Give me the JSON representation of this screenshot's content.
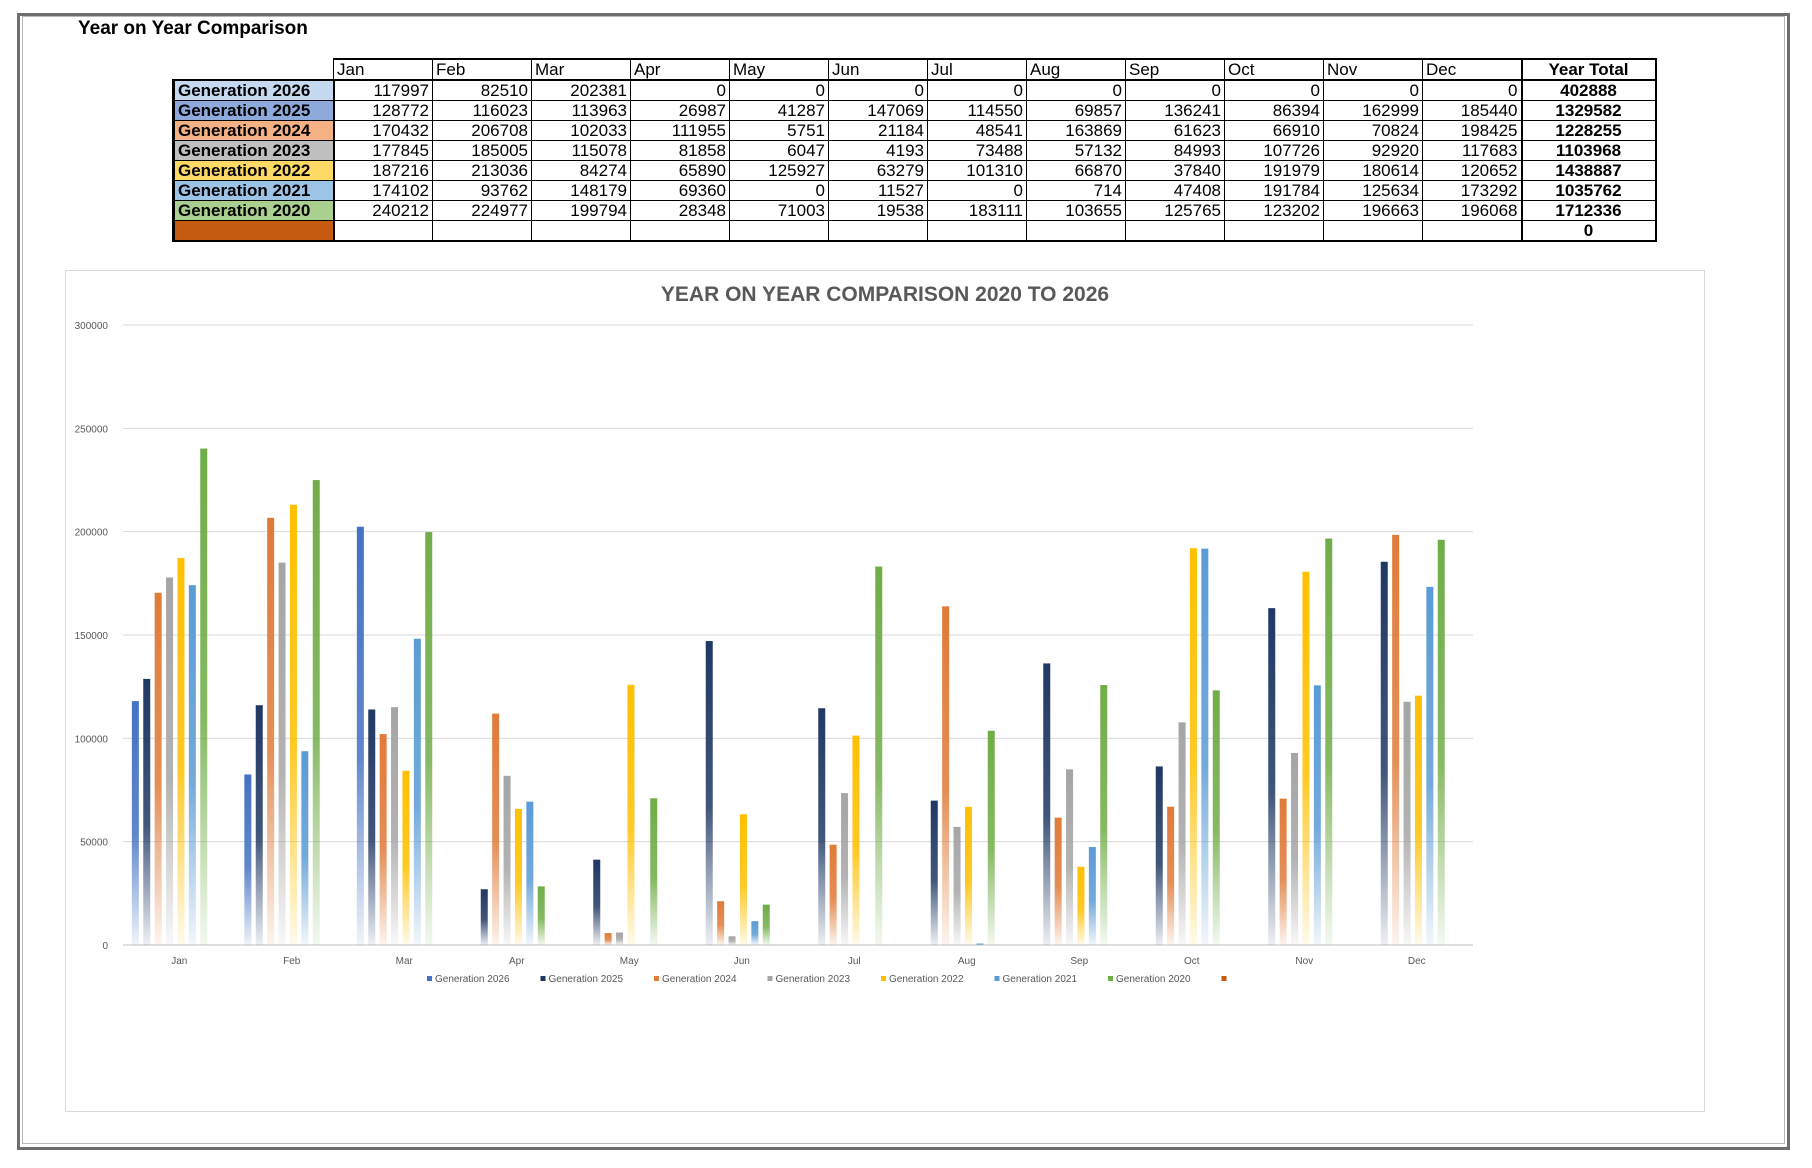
{
  "sheet": {
    "title": "Year on Year Comparison"
  },
  "table": {
    "months": [
      "Jan",
      "Feb",
      "Mar",
      "Apr",
      "May",
      "Jun",
      "Jul",
      "Aug",
      "Sep",
      "Oct",
      "Nov",
      "Dec"
    ],
    "total_header": "Year Total",
    "rows": [
      {
        "label": "Generation 2026",
        "color": "#c5d9f1",
        "values": [
          "117997",
          "82510",
          "202381",
          "0",
          "0",
          "0",
          "0",
          "0",
          "0",
          "0",
          "0",
          "0"
        ],
        "total": "402888"
      },
      {
        "label": "Generation 2025",
        "color": "#8ea9db",
        "values": [
          "128772",
          "116023",
          "113963",
          "26987",
          "41287",
          "147069",
          "114550",
          "69857",
          "136241",
          "86394",
          "162999",
          "185440"
        ],
        "total": "1329582"
      },
      {
        "label": "Generation 2024",
        "color": "#f4b183",
        "values": [
          "170432",
          "206708",
          "102033",
          "111955",
          "5751",
          "21184",
          "48541",
          "163869",
          "61623",
          "66910",
          "70824",
          "198425"
        ],
        "total": "1228255"
      },
      {
        "label": "Generation 2023",
        "color": "#bfbfbf",
        "values": [
          "177845",
          "185005",
          "115078",
          "81858",
          "6047",
          "4193",
          "73488",
          "57132",
          "84993",
          "107726",
          "92920",
          "117683"
        ],
        "total": "1103968"
      },
      {
        "label": "Generation 2022",
        "color": "#ffd966",
        "values": [
          "187216",
          "213036",
          "84274",
          "65890",
          "125927",
          "63279",
          "101310",
          "66870",
          "37840",
          "191979",
          "180614",
          "120652"
        ],
        "total": "1438887"
      },
      {
        "label": "Generation 2021",
        "color": "#9dc3e6",
        "values": [
          "174102",
          "93762",
          "148179",
          "69360",
          "0",
          "11527",
          "0",
          "714",
          "47408",
          "191784",
          "125634",
          "173292"
        ],
        "total": "1035762"
      },
      {
        "label": "Generation 2020",
        "color": "#a9d08e",
        "values": [
          "240212",
          "224977",
          "199794",
          "28348",
          "71003",
          "19538",
          "183111",
          "103655",
          "125765",
          "123202",
          "196663",
          "196068"
        ],
        "total": "1712336"
      },
      {
        "label": "",
        "color": "#c55a11",
        "values": [
          "",
          "",
          "",
          "",
          "",
          "",
          "",
          "",
          "",
          "",
          "",
          ""
        ],
        "total": "0"
      }
    ]
  },
  "chart_data": {
    "type": "bar",
    "title": "YEAR ON YEAR COMPARISON 2020 TO 2026",
    "categories": [
      "Jan",
      "Feb",
      "Mar",
      "Apr",
      "May",
      "Jun",
      "Jul",
      "Aug",
      "Sep",
      "Oct",
      "Nov",
      "Dec"
    ],
    "ylim": [
      0,
      300000
    ],
    "yticks": [
      0,
      50000,
      100000,
      150000,
      200000,
      250000,
      300000
    ],
    "grid": true,
    "legend_position": "bottom",
    "series": [
      {
        "name": "Generation 2026",
        "color": "#4472c4",
        "values": [
          117997,
          82510,
          202381,
          0,
          0,
          0,
          0,
          0,
          0,
          0,
          0,
          0
        ]
      },
      {
        "name": "Generation 2025",
        "color": "#203864",
        "values": [
          128772,
          116023,
          113963,
          26987,
          41287,
          147069,
          114550,
          69857,
          136241,
          86394,
          162999,
          185440
        ]
      },
      {
        "name": "Generation 2024",
        "color": "#e07b39",
        "values": [
          170432,
          206708,
          102033,
          111955,
          5751,
          21184,
          48541,
          163869,
          61623,
          66910,
          70824,
          198425
        ]
      },
      {
        "name": "Generation 2023",
        "color": "#a5a5a5",
        "values": [
          177845,
          185005,
          115078,
          81858,
          6047,
          4193,
          73488,
          57132,
          84993,
          107726,
          92920,
          117683
        ]
      },
      {
        "name": "Generation 2022",
        "color": "#ffc000",
        "values": [
          187216,
          213036,
          84274,
          65890,
          125927,
          63279,
          101310,
          66870,
          37840,
          191979,
          180614,
          120652
        ]
      },
      {
        "name": "Generation 2021",
        "color": "#5b9bd5",
        "values": [
          174102,
          93762,
          148179,
          69360,
          0,
          11527,
          0,
          714,
          47408,
          191784,
          125634,
          173292
        ]
      },
      {
        "name": "Generation 2020",
        "color": "#70ad47",
        "values": [
          240212,
          224977,
          199794,
          28348,
          71003,
          19538,
          183111,
          103655,
          125765,
          123202,
          196663,
          196068
        ]
      },
      {
        "name": "",
        "color": "#c55a11",
        "values": [
          0,
          0,
          0,
          0,
          0,
          0,
          0,
          0,
          0,
          0,
          0,
          0
        ]
      }
    ]
  }
}
